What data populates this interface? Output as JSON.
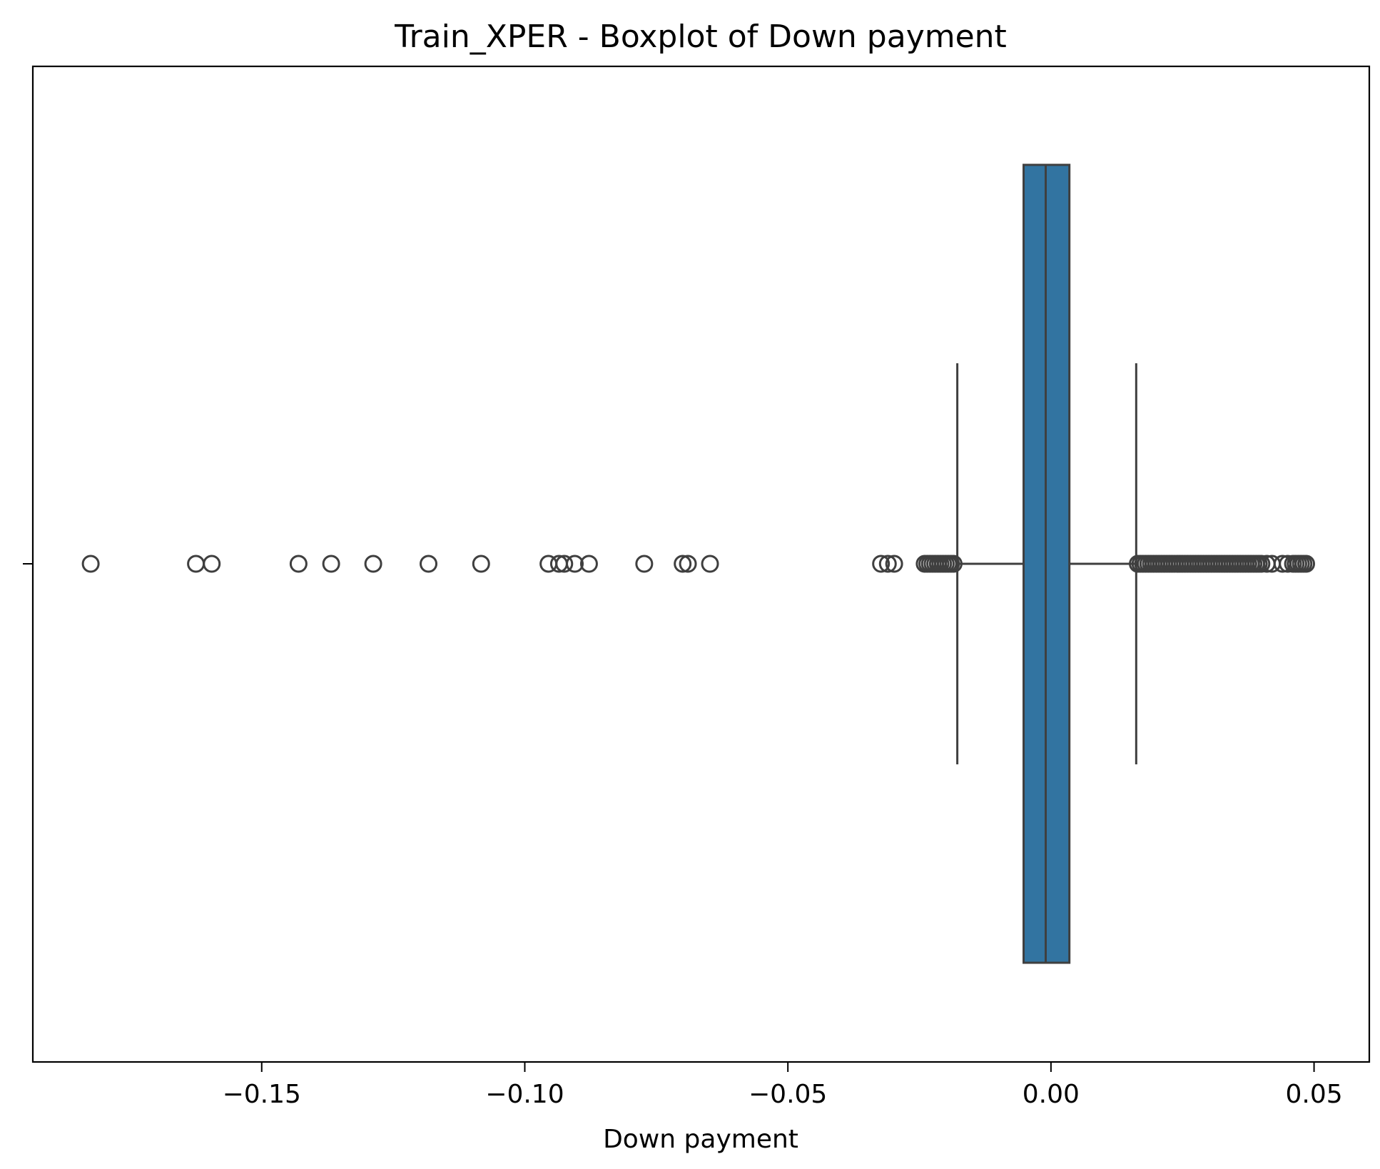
{
  "chart_data": {
    "type": "boxplot",
    "orientation": "horizontal",
    "title": "Train_XPER - Boxplot of Down payment",
    "xlabel": "Down payment",
    "ylabel": "",
    "xlim": [
      -0.1935,
      0.0605
    ],
    "xticks": [
      -0.15,
      -0.1,
      -0.05,
      0.0,
      0.05
    ],
    "xtick_labels": [
      "−0.15",
      "−0.10",
      "−0.05",
      "0.00",
      "0.05"
    ],
    "grid": false,
    "box": {
      "q1": -0.0052,
      "median": -0.001,
      "q3": 0.0035,
      "whisker_low": -0.0178,
      "whisker_high": 0.0162,
      "fill_color": "#3274a1",
      "edge_color": "#3f3f3f"
    },
    "outliers": [
      -0.1825,
      -0.1625,
      -0.1595,
      -0.143,
      -0.1368,
      -0.1288,
      -0.1183,
      -0.1083,
      -0.0955,
      -0.0935,
      -0.0925,
      -0.0905,
      -0.0878,
      -0.0773,
      -0.07,
      -0.069,
      -0.0648,
      -0.0323,
      -0.031,
      -0.0298,
      -0.024,
      -0.0235,
      -0.023,
      -0.0225,
      -0.022,
      -0.0215,
      -0.021,
      -0.0205,
      -0.02,
      -0.0195,
      -0.019,
      -0.0185,
      0.0165,
      0.017,
      0.0175,
      0.018,
      0.0185,
      0.019,
      0.0195,
      0.02,
      0.0205,
      0.021,
      0.0215,
      0.022,
      0.0225,
      0.023,
      0.0235,
      0.024,
      0.0245,
      0.025,
      0.0255,
      0.026,
      0.0265,
      0.027,
      0.0275,
      0.028,
      0.0285,
      0.029,
      0.0295,
      0.03,
      0.0305,
      0.031,
      0.0315,
      0.032,
      0.0325,
      0.033,
      0.0335,
      0.034,
      0.0345,
      0.035,
      0.0355,
      0.036,
      0.0365,
      0.037,
      0.0375,
      0.038,
      0.0385,
      0.039,
      0.0395,
      0.04,
      0.041,
      0.042,
      0.044,
      0.045,
      0.046,
      0.0465,
      0.047,
      0.0475,
      0.048,
      0.0485
    ]
  }
}
